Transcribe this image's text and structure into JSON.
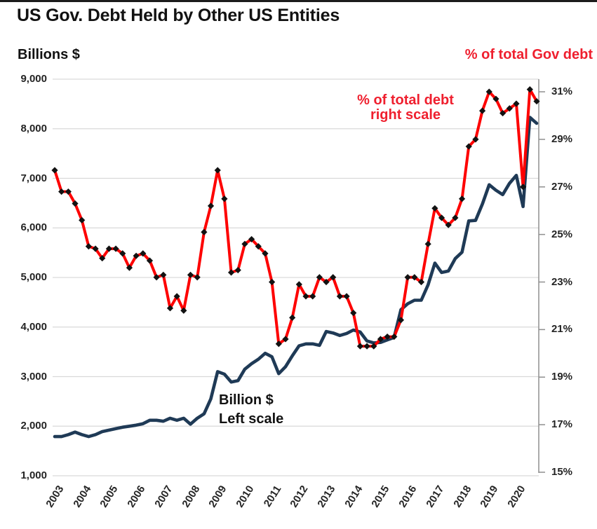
{
  "chart_data": {
    "type": "line",
    "title": "US Gov. Debt Held by Other US Entities",
    "grid": "horizontal-only",
    "legend_position": "none (in-chart text annotations)",
    "x_axis": {
      "tick_labels": [
        "2003",
        "2004",
        "2005",
        "2006",
        "2007",
        "2008",
        "2009",
        "2010",
        "2011",
        "2012",
        "2013",
        "2014",
        "2015",
        "2016",
        "2017",
        "2018",
        "2019",
        "2020"
      ],
      "frequency": "quarterly",
      "points_per_year": 4,
      "first_point": "2003 Q1",
      "last_point": "2020 Q4"
    },
    "left_axis": {
      "title": "Billions $",
      "min": 1000,
      "max": 9000,
      "step": 1000,
      "tick_labels": [
        "9,000",
        "8,000",
        "7,000",
        "6,000",
        "5,000",
        "4,000",
        "3,000",
        "2,000",
        "1,000"
      ],
      "color": "#242424"
    },
    "right_axis": {
      "title": "% of total Gov debt",
      "min": 15,
      "max": 31,
      "step": 2,
      "tick_labels": [
        "31%",
        "29%",
        "27%",
        "25%",
        "23%",
        "21%",
        "19%",
        "17%",
        "15%"
      ],
      "color": "#ef1f2e"
    },
    "series": [
      {
        "name": "Billion $ Left scale",
        "axis": "left",
        "color": "#1f3a56",
        "marker": "none",
        "unit": "billions USD",
        "values": [
          1790,
          1790,
          1830,
          1880,
          1830,
          1790,
          1830,
          1890,
          1920,
          1950,
          1980,
          2000,
          2020,
          2050,
          2120,
          2120,
          2100,
          2160,
          2120,
          2160,
          2040,
          2160,
          2250,
          2550,
          3100,
          3050,
          2890,
          2920,
          3150,
          3260,
          3350,
          3470,
          3400,
          3060,
          3200,
          3420,
          3620,
          3660,
          3660,
          3630,
          3910,
          3880,
          3830,
          3870,
          3940,
          3900,
          3720,
          3680,
          3690,
          3740,
          3790,
          4350,
          4470,
          4540,
          4540,
          4850,
          5290,
          5100,
          5130,
          5380,
          5510,
          6140,
          6150,
          6480,
          6870,
          6760,
          6670,
          6900,
          7060,
          6430,
          8230,
          8110
        ]
      },
      {
        "name": "% of total debt right scale",
        "axis": "right",
        "color": "#fe0000",
        "marker": "black-diamond",
        "unit": "percent of total Gov debt",
        "values": [
          27.7,
          26.8,
          26.8,
          26.3,
          25.6,
          24.5,
          24.4,
          24.0,
          24.4,
          24.4,
          24.2,
          23.6,
          24.1,
          24.2,
          23.9,
          23.2,
          23.3,
          21.9,
          22.4,
          21.8,
          23.3,
          23.2,
          25.1,
          26.2,
          27.7,
          26.5,
          23.4,
          23.5,
          24.6,
          24.8,
          24.5,
          24.2,
          23.0,
          20.4,
          20.6,
          21.5,
          22.9,
          22.4,
          22.4,
          23.2,
          23.0,
          23.2,
          22.4,
          22.4,
          21.7,
          20.3,
          20.3,
          20.3,
          20.6,
          20.7,
          20.7,
          21.4,
          23.2,
          23.2,
          23.0,
          24.6,
          26.1,
          25.7,
          25.4,
          25.7,
          26.5,
          28.7,
          29.0,
          30.2,
          31.0,
          30.7,
          30.1,
          30.3,
          30.5,
          27.0,
          31.1,
          30.6
        ]
      }
    ],
    "annotations": [
      {
        "line1": "% of total debt",
        "line2": "right scale",
        "color": "#ef1f2e",
        "refers_to": "red series"
      },
      {
        "line1": "Billion $",
        "line2": "Left scale",
        "color": "#121212",
        "refers_to": "navy series"
      }
    ]
  }
}
